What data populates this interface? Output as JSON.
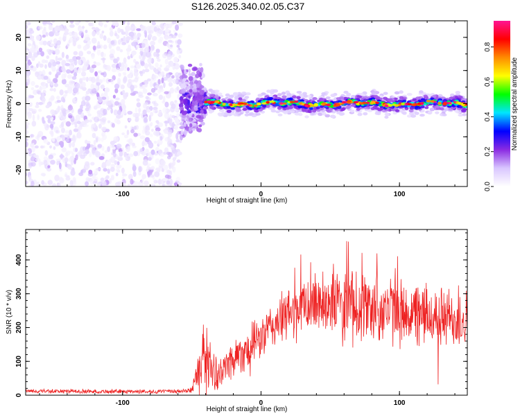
{
  "title": "S126.2025.340.02.05.C37",
  "chart_data": [
    {
      "type": "heatmap",
      "title": "S126.2025.340.02.05.C37",
      "xlabel": "Height of straight line (km)",
      "ylabel": "Frequency (Hz)",
      "xlim": [
        -170,
        149
      ],
      "ylim": [
        -25,
        25
      ],
      "x_ticks": [
        -100,
        0,
        100
      ],
      "x_tick_labels": [
        "-100",
        "0",
        "100"
      ],
      "y_ticks": [
        -20,
        -10,
        0,
        10,
        20
      ],
      "y_tick_labels": [
        "-20",
        "-10",
        "0",
        "10",
        "20"
      ],
      "colorbar": {
        "label": "Normalized spectral amplitude",
        "range": [
          0,
          0.95
        ],
        "ticks": [
          0.0,
          0.2,
          0.4,
          0.6,
          0.8
        ],
        "tick_labels": [
          "0.0",
          "0.2",
          "0.4",
          "0.6",
          "0.8"
        ],
        "colormap": [
          "#ffffff",
          "#d9c6ff",
          "#8a2be2",
          "#0000ff",
          "#00e5ff",
          "#00ff00",
          "#ffff00",
          "#ff8c00",
          "#ff0000",
          "#ff1493"
        ]
      },
      "regions": [
        {
          "name": "noise",
          "x_range": [
            -170,
            -58
          ],
          "freq_range": [
            -25,
            25
          ],
          "amplitude_range": [
            0.0,
            0.1
          ]
        },
        {
          "name": "transition",
          "x_range": [
            -58,
            -40
          ],
          "freq_range": [
            -10,
            10
          ],
          "amplitude_range": [
            0.05,
            0.3
          ]
        },
        {
          "name": "signal",
          "x_range": [
            -40,
            149
          ],
          "freq_center": 0,
          "freq_halfwidth": 2,
          "amplitude_peak": 0.95
        }
      ]
    },
    {
      "type": "line",
      "xlabel": "Height of straight line (km)",
      "ylabel": "SNR (10 * v/v)",
      "xlim": [
        -170,
        149
      ],
      "ylim": [
        0,
        490
      ],
      "x_ticks": [
        -100,
        0,
        100
      ],
      "x_tick_labels": [
        "-100",
        "0",
        "100"
      ],
      "y_ticks": [
        0,
        100,
        200,
        300,
        400
      ],
      "y_tick_labels": [
        "0",
        "100",
        "200",
        "300",
        "400"
      ],
      "series": [
        {
          "name": "SNR",
          "color": "#ee2222",
          "x": [
            -170,
            -120,
            -60,
            -50,
            -45,
            -40,
            -35,
            -30,
            -25,
            -20,
            -10,
            0,
            10,
            20,
            30,
            40,
            50,
            60,
            70,
            80,
            90,
            100,
            110,
            120,
            130,
            140,
            149
          ],
          "mean": [
            12,
            11,
            11,
            15,
            90,
            130,
            70,
            55,
            90,
            110,
            140,
            170,
            210,
            240,
            260,
            275,
            280,
            270,
            265,
            260,
            255,
            245,
            240,
            235,
            230,
            225,
            230
          ],
          "spread": [
            6,
            6,
            6,
            10,
            60,
            90,
            60,
            40,
            50,
            60,
            60,
            60,
            70,
            75,
            80,
            90,
            95,
            100,
            100,
            100,
            100,
            95,
            90,
            90,
            90,
            85,
            80
          ]
        }
      ]
    }
  ]
}
